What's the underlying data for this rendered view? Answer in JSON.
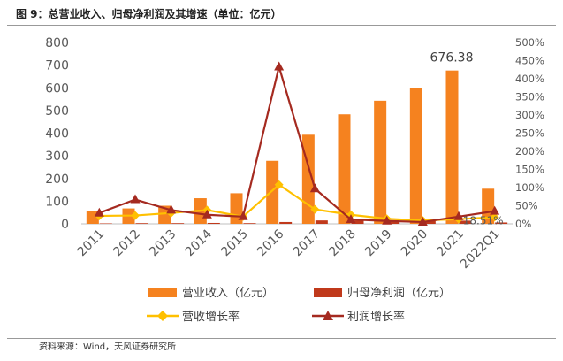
{
  "figure": {
    "title": "图 9：总营业收入、归母净利润及其增速（单位：亿元）",
    "source": "资料来源：Wind，天风证券研究所"
  },
  "chart_data": {
    "type": "bar",
    "categories": [
      "2011",
      "2012",
      "2013",
      "2014",
      "2015",
      "2016",
      "2017",
      "2018",
      "2019",
      "2020",
      "2021",
      "2022Q1"
    ],
    "series": [
      {
        "name": "营业收入（亿元）",
        "kind": "bar",
        "axis": "left",
        "color": "#F5821F",
        "values": [
          55,
          68,
          80,
          113,
          135,
          278,
          393,
          483,
          543,
          598,
          676.38,
          155
        ]
      },
      {
        "name": "归母净利润（亿元）",
        "kind": "bar",
        "axis": "left",
        "color": "#C0391B",
        "values": [
          2,
          3,
          3,
          4,
          3,
          8,
          15,
          15,
          14,
          14,
          14,
          6
        ]
      },
      {
        "name": "营收增长率",
        "kind": "line",
        "axis": "right",
        "color": "#FFC000",
        "marker": "diamond",
        "values": [
          22,
          23,
          30,
          38,
          20,
          108,
          40,
          25,
          14,
          9,
          13,
          18.51
        ]
      },
      {
        "name": "利润增长率",
        "kind": "line",
        "axis": "right",
        "color": "#A52A20",
        "marker": "triangle",
        "values": [
          30,
          67,
          38,
          25,
          20,
          433,
          97,
          12,
          8,
          5,
          20,
          35
        ]
      }
    ],
    "y_left": {
      "range": [
        0,
        800
      ],
      "ticks": [
        "0",
        "100",
        "200",
        "300",
        "400",
        "500",
        "600",
        "700",
        "800"
      ]
    },
    "y_right": {
      "range": [
        0,
        500
      ],
      "ticks": [
        "0%",
        "50%",
        "100%",
        "150%",
        "200%",
        "250%",
        "300%",
        "350%",
        "400%",
        "450%",
        "500%"
      ]
    },
    "annotations": [
      {
        "text": "676.38",
        "category": "2021",
        "series": "营业收入（亿元）"
      },
      {
        "text": "18.51%",
        "category": "2022Q1",
        "series": "营收增长率"
      }
    ],
    "legend_position": "bottom"
  }
}
